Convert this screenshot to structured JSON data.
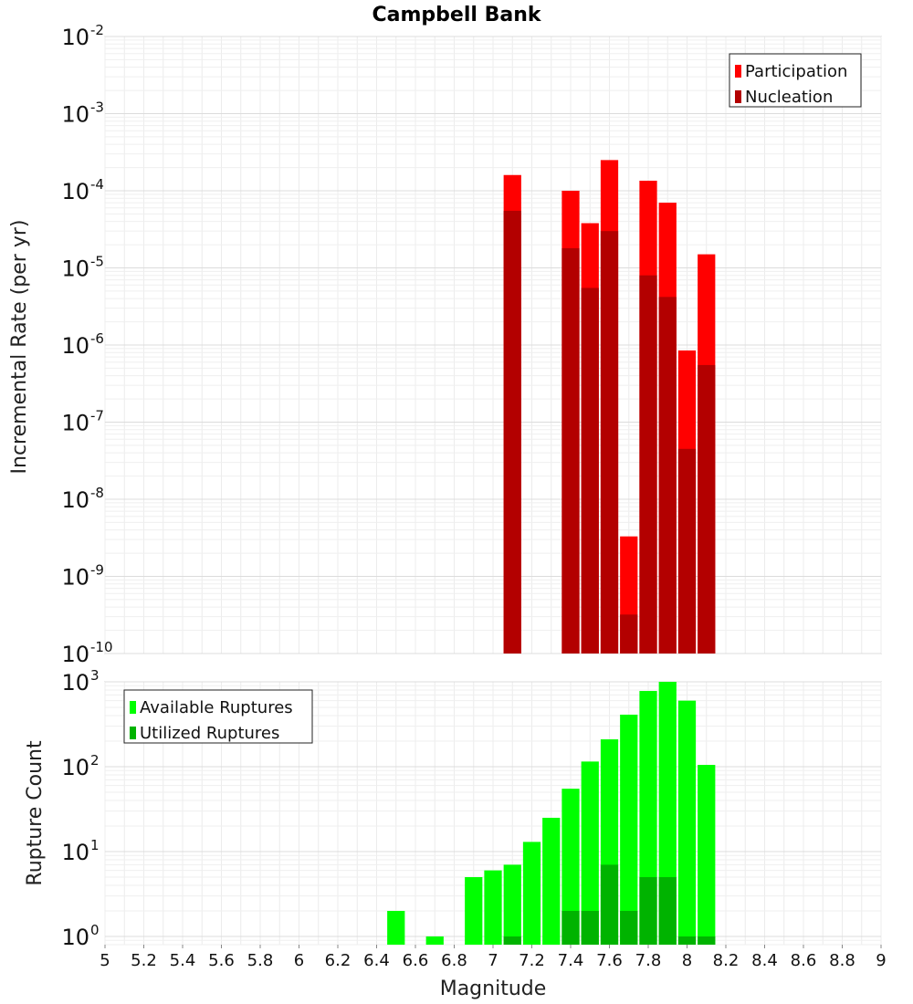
{
  "chart_data": [
    {
      "type": "bar",
      "title": "Campbell Bank",
      "ylabel": "Incremental Rate (per yr)",
      "xlabel": "",
      "yscale": "log",
      "ylim": [
        1e-10,
        0.01
      ],
      "xlim": [
        5,
        9
      ],
      "bar_width": 0.1,
      "legend": {
        "position": "top-right"
      },
      "grid": true,
      "x": [
        7.1,
        7.4,
        7.5,
        7.6,
        7.7,
        7.8,
        7.9,
        8.0,
        8.1
      ],
      "series": [
        {
          "name": "Participation",
          "color": "#ff0000",
          "values": [
            0.00016,
            0.0001,
            3.8e-05,
            0.00025,
            3.3e-09,
            0.000135,
            7e-05,
            8.5e-07,
            1.5e-05
          ]
        },
        {
          "name": "Nucleation",
          "color": "#b30000",
          "values": [
            5.5e-05,
            1.8e-05,
            5.5e-06,
            3e-05,
            3.2e-10,
            8e-06,
            4.2e-06,
            4.5e-08,
            5.5e-07
          ]
        }
      ]
    },
    {
      "type": "bar",
      "title": "",
      "ylabel": "Rupture Count",
      "xlabel": "Magnitude",
      "yscale": "log",
      "ylim": [
        0.8,
        1000
      ],
      "xlim": [
        5,
        9
      ],
      "bar_width": 0.1,
      "legend": {
        "position": "top-left"
      },
      "grid": true,
      "xticks": [
        "5",
        "5.2",
        "5.4",
        "5.6",
        "5.8",
        "6",
        "6.2",
        "6.4",
        "6.6",
        "6.8",
        "7",
        "7.2",
        "7.4",
        "7.6",
        "7.8",
        "8",
        "8.2",
        "8.4",
        "8.6",
        "8.8",
        "9"
      ],
      "x": [
        6.5,
        6.7,
        6.9,
        7.0,
        7.1,
        7.2,
        7.3,
        7.4,
        7.5,
        7.6,
        7.7,
        7.8,
        7.9,
        8.0,
        8.1
      ],
      "series": [
        {
          "name": "Available Ruptures",
          "color": "#00ff00",
          "values": [
            2,
            1,
            5,
            6,
            7,
            13,
            25,
            55,
            115,
            210,
            410,
            780,
            1000,
            600,
            105
          ]
        },
        {
          "name": "Utilized Ruptures",
          "color": "#00b300",
          "values": [
            0,
            0,
            0,
            0,
            1,
            0,
            0,
            2,
            2,
            7,
            2,
            5,
            5,
            1,
            1
          ]
        }
      ]
    }
  ],
  "yticks_top": [
    {
      "base": "10",
      "exp": "-2",
      "value": 0.01
    },
    {
      "base": "10",
      "exp": "-3",
      "value": 0.001
    },
    {
      "base": "10",
      "exp": "-4",
      "value": 0.0001
    },
    {
      "base": "10",
      "exp": "-5",
      "value": 1e-05
    },
    {
      "base": "10",
      "exp": "-6",
      "value": 1e-06
    },
    {
      "base": "10",
      "exp": "-7",
      "value": 1e-07
    },
    {
      "base": "10",
      "exp": "-8",
      "value": 1e-08
    },
    {
      "base": "10",
      "exp": "-9",
      "value": 1e-09
    },
    {
      "base": "10",
      "exp": "-10",
      "value": 1e-10
    }
  ],
  "yticks_bottom": [
    {
      "base": "10",
      "exp": "3",
      "value": 1000
    },
    {
      "base": "10",
      "exp": "2",
      "value": 100
    },
    {
      "base": "10",
      "exp": "1",
      "value": 10
    },
    {
      "base": "10",
      "exp": "0",
      "value": 1
    }
  ]
}
